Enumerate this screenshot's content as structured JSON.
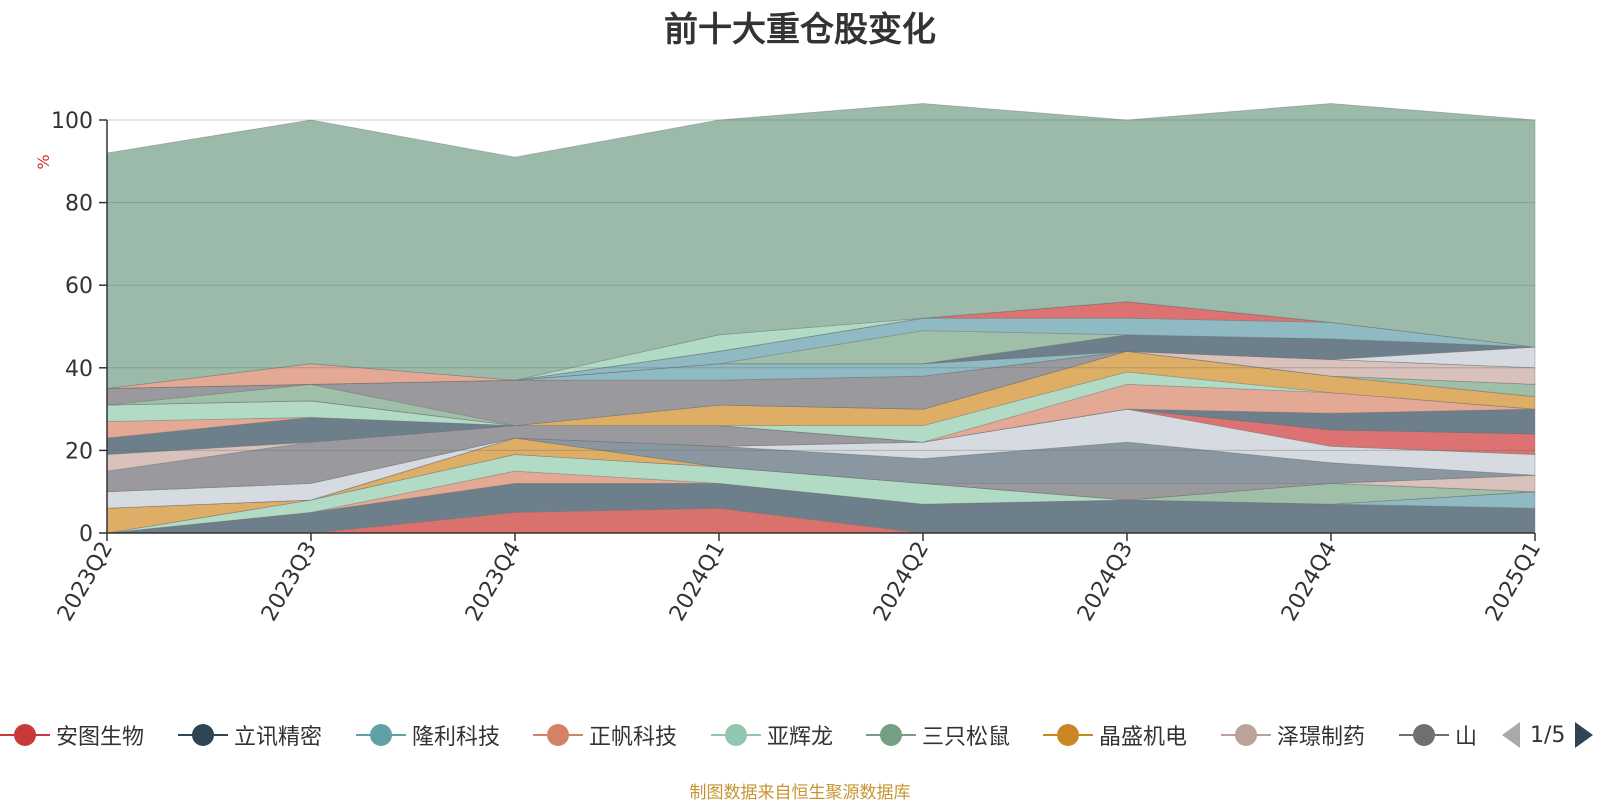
{
  "footer": "制图数据来自恒生聚源数据库",
  "legend_page": "1/5",
  "chart_data": {
    "type": "area",
    "stacked": true,
    "title": "前十大重仓股变化",
    "xlabel": "",
    "ylabel": "%",
    "ylim": [
      0,
      100
    ],
    "yticks": [
      0,
      20,
      40,
      60,
      80,
      100
    ],
    "grid": true,
    "legend_position": "bottom",
    "categories": [
      "2023Q2",
      "2023Q3",
      "2023Q4",
      "2024Q1",
      "2024Q2",
      "2024Q3",
      "2024Q4",
      "2025Q1"
    ],
    "series": [
      {
        "name": "安图生物",
        "color": "#d9716d",
        "values": [
          0,
          0,
          5,
          6,
          0,
          0,
          0,
          0
        ]
      },
      {
        "name": "立讯精密",
        "color": "#6e7f8c",
        "values": [
          0,
          5,
          7,
          6,
          7,
          8,
          7,
          6
        ]
      },
      {
        "name": "隆利科技",
        "color": "#8fbac3",
        "values": [
          0,
          0,
          0,
          0,
          0,
          0,
          0,
          4
        ]
      },
      {
        "name": "正帆科技",
        "color": "#e4a994",
        "values": [
          0,
          0,
          3,
          0,
          0,
          0,
          0,
          0
        ]
      },
      {
        "name": "亚辉龙",
        "color": "#b2dbc6",
        "values": [
          0,
          3,
          4,
          4,
          5,
          0,
          0,
          0
        ]
      },
      {
        "name": "三只松鼠",
        "color": "#9fbfa8",
        "values": [
          0,
          0,
          0,
          0,
          0,
          0,
          5,
          0
        ]
      },
      {
        "name": "晶盛机电",
        "color": "#dfae66",
        "values": [
          6,
          0,
          4,
          0,
          0,
          0,
          0,
          0
        ]
      },
      {
        "name": "泽璟制药",
        "color": "#d9c1bc",
        "values": [
          0,
          0,
          0,
          0,
          0,
          0,
          0,
          4
        ]
      },
      {
        "name": "山",
        "color": "#9a9a9e",
        "values": [
          0,
          0,
          0,
          0,
          0,
          4,
          0,
          0
        ]
      },
      {
        "color": "#8b97a0",
        "values": [
          0,
          0,
          0,
          5,
          6,
          10,
          5,
          0
        ]
      },
      {
        "color": "#d5dbe1",
        "values": [
          4,
          4,
          0,
          0,
          4,
          8,
          4,
          5
        ]
      },
      {
        "color": "#dd7272",
        "values": [
          0,
          0,
          0,
          0,
          0,
          0,
          4,
          5
        ]
      },
      {
        "color": "#9a9a9e",
        "values": [
          5,
          10,
          3,
          5,
          0,
          0,
          0,
          0
        ]
      },
      {
        "color": "#d9c1bc",
        "values": [
          4,
          0,
          0,
          0,
          0,
          0,
          0,
          0
        ]
      },
      {
        "color": "#6e7f8c",
        "values": [
          4,
          6,
          0,
          0,
          0,
          0,
          4,
          6
        ]
      },
      {
        "color": "#e4a994",
        "values": [
          4,
          0,
          0,
          0,
          0,
          6,
          5,
          0
        ]
      },
      {
        "color": "#b2dbc6",
        "values": [
          4,
          4,
          0,
          0,
          4,
          3,
          0,
          0
        ]
      },
      {
        "color": "#dfae66",
        "values": [
          0,
          0,
          0,
          5,
          4,
          5,
          4,
          3
        ]
      },
      {
        "color": "#8fbac3",
        "values": [
          0,
          0,
          0,
          0,
          0,
          0,
          0,
          0
        ]
      },
      {
        "color": "#9fbfa8",
        "values": [
          0,
          4,
          0,
          0,
          0,
          0,
          0,
          3
        ]
      },
      {
        "color": "#9a9a9e",
        "values": [
          4,
          0,
          11,
          6,
          8,
          0,
          0,
          0
        ]
      },
      {
        "color": "#d9c1bc",
        "values": [
          0,
          0,
          0,
          0,
          0,
          0,
          4,
          4
        ]
      },
      {
        "color": "#8fbac3",
        "values": [
          0,
          0,
          0,
          4,
          3,
          0,
          0,
          0
        ]
      },
      {
        "color": "#d5dbe1",
        "values": [
          0,
          0,
          0,
          0,
          0,
          0,
          0,
          5
        ]
      },
      {
        "color": "#6e7f8c",
        "values": [
          0,
          0,
          0,
          0,
          0,
          4,
          5,
          0
        ]
      },
      {
        "color": "#9fbfa8",
        "values": [
          0,
          0,
          0,
          0,
          8,
          0,
          0,
          0
        ]
      },
      {
        "color": "#8fbac3",
        "values": [
          0,
          0,
          0,
          3,
          3,
          4,
          4,
          0
        ]
      },
      {
        "color": "#dd7272",
        "values": [
          0,
          0,
          0,
          0,
          0,
          4,
          0,
          0
        ]
      },
      {
        "color": "#e4a994",
        "values": [
          0,
          5,
          0,
          0,
          0,
          0,
          0,
          0
        ]
      },
      {
        "color": "#b2dbc6",
        "values": [
          0,
          0,
          0,
          4,
          0,
          0,
          0,
          0
        ]
      },
      {
        "color": "#9bbaa9",
        "values": [
          57,
          59,
          54,
          52,
          52,
          44,
          53,
          55
        ]
      }
    ]
  },
  "legend": [
    {
      "label": "安图生物",
      "color": "#c83a3a",
      "icon": "circle-line-marker"
    },
    {
      "label": "立讯精密",
      "color": "#2f4554",
      "icon": "circle-line-marker"
    },
    {
      "label": "隆利科技",
      "color": "#61a0a8",
      "icon": "circle-line-marker"
    },
    {
      "label": "正帆科技",
      "color": "#d48265",
      "icon": "circle-line-marker"
    },
    {
      "label": "亚辉龙",
      "color": "#91c7ae",
      "icon": "circle-line-marker"
    },
    {
      "label": "三只松鼠",
      "color": "#749f83",
      "icon": "circle-line-marker"
    },
    {
      "label": "晶盛机电",
      "color": "#ca8622",
      "icon": "circle-line-marker"
    },
    {
      "label": "泽璟制药",
      "color": "#bda29a",
      "icon": "circle-line-marker"
    },
    {
      "label": "山",
      "color": "#6e7074",
      "icon": "circle-line-marker"
    }
  ]
}
